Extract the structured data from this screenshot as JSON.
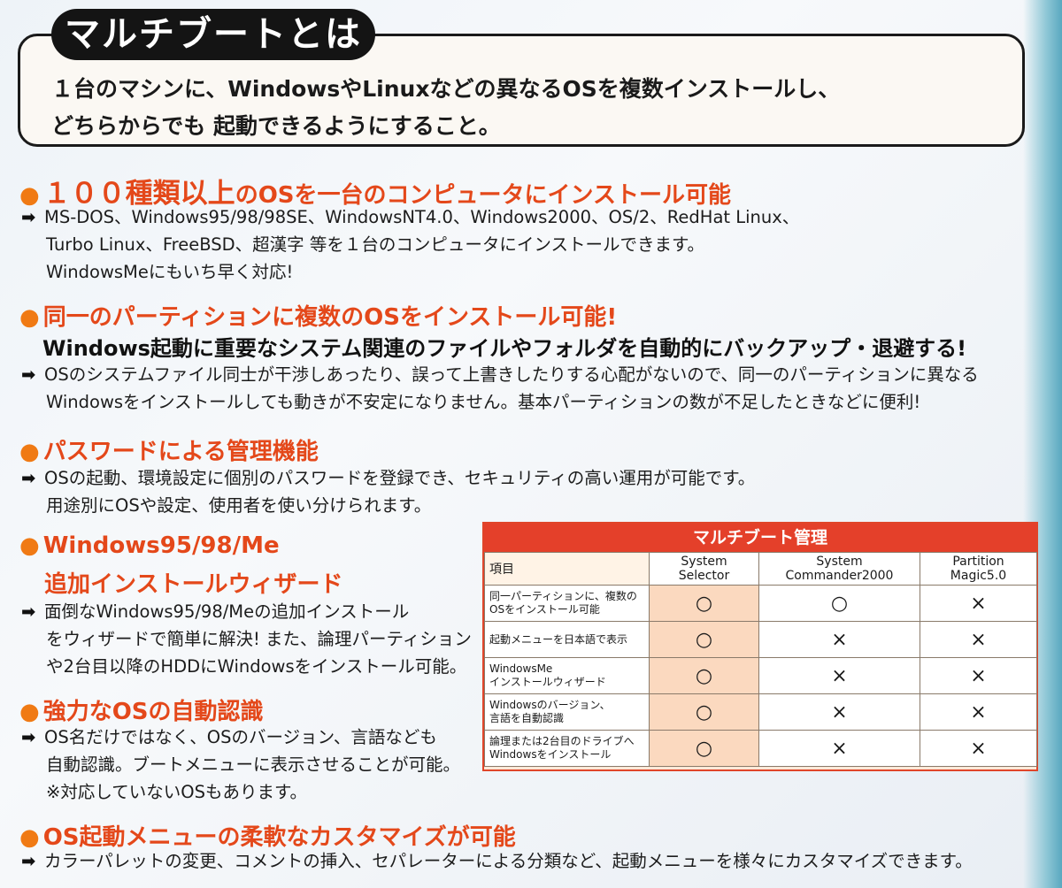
{
  "header": {
    "title": "マルチブートとは",
    "description": "１台のマシンに、WindowsやLinuxなどの異なるOSを複数インストールし、\nどちらからでも 起動できるようにすること。"
  },
  "sections": [
    {
      "title_big": "１００種類以上",
      "title_rest": "のOSを一台のコンピュータにインストール可能",
      "lines": [
        "MS-DOS、Windows95/98/98SE、WindowsNT4.0、Windows2000、OS/2、RedHat Linux、",
        "Turbo Linux、FreeBSD、超漢字 等を１台のコンピュータにインストールできます。",
        "WindowsMeにもいち早く対応!"
      ]
    },
    {
      "title": "同一のパーティションに複数のOSをインストール可能!",
      "subtitle": "Windows起動に重要なシステム関連のファイルやフォルダを自動的にバックアップ・退避する!",
      "lines": [
        "OSのシステムファイル同士が干渉しあったり、誤って上書きしたりする心配がないので、同一のパーティションに異なる",
        "Windowsをインストールしても動きが不安定になりません。基本パーティションの数が不足したときなどに便利!"
      ]
    },
    {
      "title": "パスワードによる管理機能",
      "lines": [
        "OSの起動、環境設定に個別のパスワードを登録でき、セキュリティの高い運用が可能です。",
        "用途別にOSや設定、使用者を使い分けられます。"
      ]
    },
    {
      "title": "Windows95/98/Me",
      "title_line2": "追加インストールウィザード",
      "lines": [
        "面倒なWindows95/98/Meの追加インストール",
        "をウィザードで簡単に解決! また、論理パーティション",
        "や2台目以降のHDDにWindowsをインストール可能。"
      ]
    },
    {
      "title": "強力なOSの自動認識",
      "lines": [
        "OS名だけではなく、OSのバージョン、言語なども",
        "自動認識。ブートメニューに表示させることが可能。",
        "※対応していないOSもあります。"
      ]
    },
    {
      "title": "OS起動メニューの柔軟なカスタマイズが可能",
      "lines": [
        "カラーパレットの変更、コメントの挿入、セパレーターによる分類など、起動メニューを様々にカスタマイズできます。"
      ]
    }
  ],
  "bullet": "●",
  "arrow": "➡",
  "table": {
    "title": "マルチブート管理",
    "headers": [
      "項目",
      "System Selector",
      "System Commander2000",
      "Partition Magic5.0"
    ],
    "rows": [
      {
        "item": "同一パーティションに、複数の\nOSをインストール可能",
        "values": [
          "○",
          "○",
          "×"
        ]
      },
      {
        "item": "起動メニューを日本語で表示",
        "values": [
          "○",
          "×",
          "×"
        ]
      },
      {
        "item": "WindowsMe\nインストールウィザード",
        "values": [
          "○",
          "×",
          "×"
        ]
      },
      {
        "item": "Windowsのバージョン、\n言語を自動認識",
        "values": [
          "○",
          "×",
          "×"
        ]
      },
      {
        "item": "論理または2台目のドライブへ\nWindowsをインストール",
        "values": [
          "○",
          "×",
          "×"
        ]
      }
    ]
  }
}
